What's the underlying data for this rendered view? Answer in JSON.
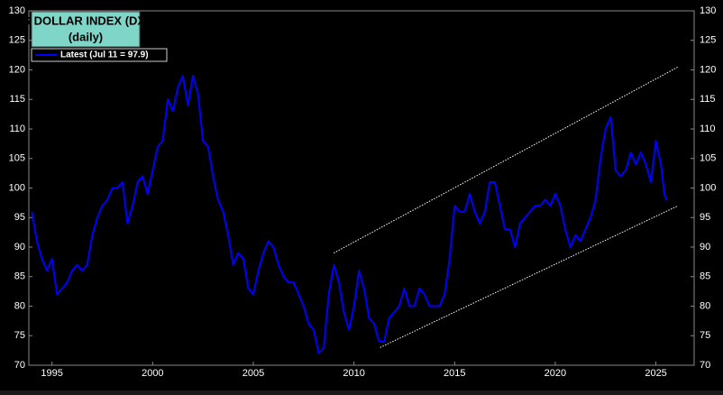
{
  "chart_data": {
    "type": "line",
    "title": "US DOLLAR INDEX (DXY)",
    "subtitle": "(daily)",
    "background": "#000000",
    "xlim": [
      1993.85,
      2026.9
    ],
    "xticks": [
      1995,
      2000,
      2005,
      2010,
      2015,
      2020,
      2025
    ],
    "ylim": [
      70,
      130
    ],
    "yticks": [
      70,
      75,
      80,
      85,
      90,
      95,
      100,
      105,
      110,
      115,
      120,
      125,
      130
    ],
    "y2lim": [
      70,
      130
    ],
    "y2ticks": [
      70,
      75,
      80,
      85,
      90,
      95,
      100,
      105,
      110,
      115,
      120,
      125,
      130
    ],
    "grid": false,
    "legend": "top-left",
    "x": [
      1994.0,
      1994.25,
      1994.5,
      1994.75,
      1995.0,
      1995.25,
      1995.5,
      1995.75,
      1996.0,
      1996.25,
      1996.5,
      1996.75,
      1997.0,
      1997.25,
      1997.5,
      1997.75,
      1998.0,
      1998.25,
      1998.5,
      1998.75,
      1999.0,
      1999.25,
      1999.5,
      1999.75,
      2000.0,
      2000.25,
      2000.5,
      2000.75,
      2001.0,
      2001.25,
      2001.5,
      2001.75,
      2002.0,
      2002.25,
      2002.5,
      2002.75,
      2003.0,
      2003.25,
      2003.5,
      2003.75,
      2004.0,
      2004.25,
      2004.5,
      2004.75,
      2005.0,
      2005.25,
      2005.5,
      2005.75,
      2006.0,
      2006.25,
      2006.5,
      2006.75,
      2007.0,
      2007.25,
      2007.5,
      2007.75,
      2008.0,
      2008.25,
      2008.5,
      2008.75,
      2009.0,
      2009.25,
      2009.5,
      2009.75,
      2010.0,
      2010.25,
      2010.5,
      2010.75,
      2011.0,
      2011.25,
      2011.5,
      2011.75,
      2012.0,
      2012.25,
      2012.5,
      2012.75,
      2013.0,
      2013.25,
      2013.5,
      2013.75,
      2014.0,
      2014.25,
      2014.5,
      2014.75,
      2015.0,
      2015.25,
      2015.5,
      2015.75,
      2016.0,
      2016.25,
      2016.5,
      2016.75,
      2017.0,
      2017.25,
      2017.5,
      2017.75,
      2018.0,
      2018.25,
      2018.5,
      2018.75,
      2019.0,
      2019.25,
      2019.5,
      2019.75,
      2020.0,
      2020.25,
      2020.5,
      2020.75,
      2021.0,
      2021.25,
      2021.5,
      2021.75,
      2022.0,
      2022.25,
      2022.5,
      2022.75,
      2023.0,
      2023.25,
      2023.5,
      2023.75,
      2024.0,
      2024.25,
      2024.5,
      2024.75,
      2025.0,
      2025.25,
      2025.42,
      2025.53
    ],
    "series": [
      {
        "name": "Latest (Jul 11 = 97.9)",
        "color": "#0000ff",
        "values": [
          96,
          91,
          88,
          86,
          88,
          82,
          83,
          84,
          86,
          87,
          86,
          87,
          92,
          95,
          97,
          98,
          100,
          100,
          101,
          94,
          97,
          101,
          102,
          99,
          103,
          107,
          108,
          115,
          113,
          117,
          119,
          114,
          119,
          116,
          108,
          107,
          102,
          98,
          96,
          92,
          87,
          89,
          88,
          83,
          82,
          86,
          89,
          91,
          90,
          87,
          85,
          84,
          84,
          82,
          80,
          77,
          76,
          72,
          73,
          82,
          87,
          84,
          79,
          76,
          80,
          86,
          83,
          78,
          77,
          74,
          74,
          78,
          79,
          80,
          83,
          80,
          80,
          83,
          82,
          80,
          80,
          80,
          82,
          88,
          97,
          96,
          96,
          99,
          96,
          94,
          96,
          101,
          101,
          97,
          93,
          93,
          90,
          94,
          95,
          96,
          97,
          97,
          98,
          97,
          99,
          97,
          93,
          90,
          92,
          91,
          93,
          95,
          98,
          105,
          110,
          112,
          103,
          102,
          103,
          106,
          104,
          106,
          104,
          101,
          108,
          104,
          99,
          97.9
        ]
      }
    ],
    "channel": {
      "color": "#ffffff",
      "lines": [
        {
          "x": [
            2009.0,
            2026.1
          ],
          "y": [
            89,
            120.5
          ]
        },
        {
          "x": [
            2011.3,
            2026.1
          ],
          "y": [
            73,
            97
          ]
        }
      ]
    }
  }
}
